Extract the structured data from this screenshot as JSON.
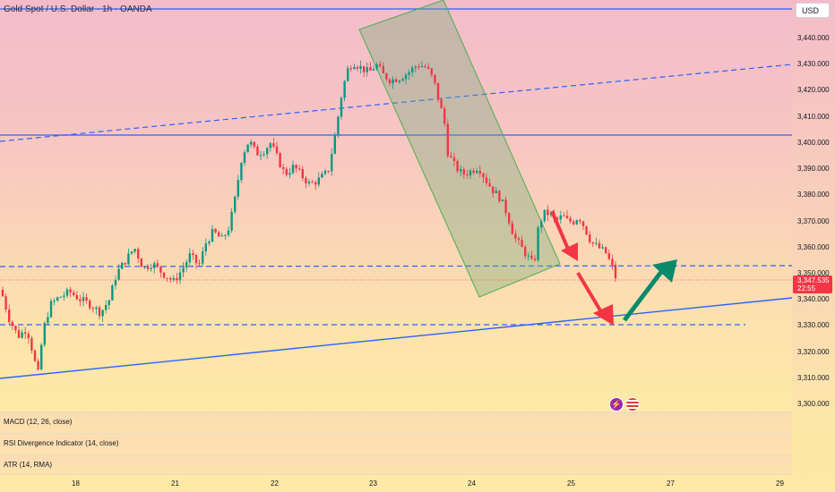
{
  "header": {
    "title": "Gold Spot / U.S. Dollar · 1h · OANDA"
  },
  "currency": {
    "label": "USD"
  },
  "price_axis": {
    "ticks": [
      "3,440.000",
      "3,430.000",
      "3,420.000",
      "3,410.000",
      "3,400.000",
      "3,390.000",
      "3,380.000",
      "3,370.000",
      "3,360.000",
      "3,350.000",
      "3,340.000",
      "3,330.000",
      "3,320.000",
      "3,310.000",
      "3,300.000"
    ]
  },
  "last_price": {
    "value": "3,347.535",
    "countdown": "22:55",
    "color": "#f23645"
  },
  "time_axis": {
    "ticks": [
      "18",
      "21",
      "22",
      "23",
      "24",
      "25",
      "27",
      "29"
    ]
  },
  "indicators": [
    {
      "label": "MACD (12, 26, close)"
    },
    {
      "label": "RSI Divergence Indicator (14, close)"
    },
    {
      "label": "ATR (14, RMA)"
    }
  ],
  "colors": {
    "up": "#089981",
    "down": "#f23645",
    "line": "#2962ff",
    "channel": "#4caf50",
    "arrow_down": "#f23645",
    "arrow_up": "#0b8a6b"
  },
  "events": [
    {
      "icon": "lightning-icon"
    },
    {
      "icon": "us-flag-icon"
    }
  ],
  "chart_data": {
    "type": "candlestick",
    "symbol": "Gold Spot / U.S. Dollar",
    "interval": "1h",
    "ylim": [
      3300,
      3450
    ],
    "x_labels": [
      "18",
      "21",
      "22",
      "23",
      "24",
      "25",
      "27",
      "29"
    ],
    "path": [
      [
        0,
        3345
      ],
      [
        10,
        3333
      ],
      [
        20,
        3326
      ],
      [
        30,
        3329
      ],
      [
        38,
        3318
      ],
      [
        42,
        3310
      ],
      [
        48,
        3328
      ],
      [
        56,
        3338
      ],
      [
        66,
        3341
      ],
      [
        78,
        3343
      ],
      [
        90,
        3340
      ],
      [
        102,
        3338
      ],
      [
        112,
        3335
      ],
      [
        122,
        3340
      ],
      [
        130,
        3350
      ],
      [
        140,
        3355
      ],
      [
        150,
        3360
      ],
      [
        160,
        3352
      ],
      [
        170,
        3354
      ],
      [
        182,
        3350
      ],
      [
        194,
        3347
      ],
      [
        204,
        3352
      ],
      [
        212,
        3357
      ],
      [
        222,
        3353
      ],
      [
        230,
        3362
      ],
      [
        238,
        3366
      ],
      [
        248,
        3363
      ],
      [
        256,
        3368
      ],
      [
        262,
        3378
      ],
      [
        270,
        3395
      ],
      [
        278,
        3401
      ],
      [
        286,
        3396
      ],
      [
        294,
        3397
      ],
      [
        302,
        3400
      ],
      [
        310,
        3394
      ],
      [
        318,
        3388
      ],
      [
        328,
        3391
      ],
      [
        338,
        3387
      ],
      [
        346,
        3384
      ],
      [
        356,
        3386
      ],
      [
        366,
        3389
      ],
      [
        374,
        3403
      ],
      [
        382,
        3420
      ],
      [
        388,
        3428
      ],
      [
        394,
        3431
      ],
      [
        402,
        3429
      ],
      [
        412,
        3427
      ],
      [
        420,
        3430
      ],
      [
        428,
        3426
      ],
      [
        436,
        3424
      ],
      [
        446,
        3425
      ],
      [
        456,
        3427
      ],
      [
        466,
        3430
      ],
      [
        476,
        3429
      ],
      [
        484,
        3424
      ],
      [
        490,
        3416
      ],
      [
        496,
        3408
      ],
      [
        500,
        3396
      ],
      [
        508,
        3391
      ],
      [
        516,
        3388
      ],
      [
        524,
        3389
      ],
      [
        534,
        3391
      ],
      [
        542,
        3386
      ],
      [
        550,
        3382
      ],
      [
        558,
        3379
      ],
      [
        566,
        3373
      ],
      [
        574,
        3364
      ],
      [
        582,
        3360
      ],
      [
        590,
        3356
      ],
      [
        596,
        3353
      ],
      [
        600,
        3366
      ],
      [
        606,
        3373
      ],
      [
        614,
        3373
      ],
      [
        620,
        3370
      ],
      [
        628,
        3372
      ],
      [
        634,
        3370
      ],
      [
        640,
        3370
      ],
      [
        646,
        3372
      ],
      [
        652,
        3368
      ],
      [
        660,
        3362
      ],
      [
        668,
        3360
      ],
      [
        676,
        3358
      ],
      [
        684,
        3352
      ],
      [
        688,
        3347.5
      ]
    ],
    "last_price": 3347.535
  }
}
